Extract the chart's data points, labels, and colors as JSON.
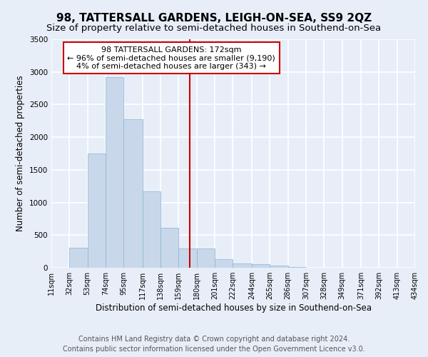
{
  "title": "98, TATTERSALL GARDENS, LEIGH-ON-SEA, SS9 2QZ",
  "subtitle": "Size of property relative to semi-detached houses in Southend-on-Sea",
  "xlabel": "Distribution of semi-detached houses by size in Southend-on-Sea",
  "ylabel": "Number of semi-detached properties",
  "footer_line1": "Contains HM Land Registry data © Crown copyright and database right 2024.",
  "footer_line2": "Contains public sector information licensed under the Open Government Licence v3.0.",
  "bin_edges": [
    11,
    32,
    53,
    74,
    95,
    117,
    138,
    159,
    180,
    201,
    222,
    244,
    265,
    286,
    307,
    328,
    349,
    371,
    392,
    413,
    434
  ],
  "bar_heights": [
    5,
    310,
    1750,
    2920,
    2280,
    1175,
    610,
    290,
    300,
    135,
    70,
    55,
    30,
    10,
    5,
    3,
    2,
    1,
    1,
    0
  ],
  "bar_color": "#c8d8ea",
  "bar_edgecolor": "#8ab4d4",
  "vline_x": 172,
  "vline_color": "#cc0000",
  "ylim": [
    0,
    3500
  ],
  "yticks": [
    0,
    500,
    1000,
    1500,
    2000,
    2500,
    3000,
    3500
  ],
  "annotation_title": "98 TATTERSALL GARDENS: 172sqm",
  "annotation_line1": "← 96% of semi-detached houses are smaller (9,190)",
  "annotation_line2": "4% of semi-detached houses are larger (343) →",
  "annotation_box_color": "#ffffff",
  "annotation_box_edgecolor": "#cc0000",
  "background_color": "#e8eef8",
  "grid_color": "#ffffff",
  "title_fontsize": 11,
  "subtitle_fontsize": 9.5,
  "tick_label_fontsize": 7,
  "ylabel_fontsize": 8.5,
  "xlabel_fontsize": 8.5,
  "annotation_fontsize": 8,
  "footer_fontsize": 7
}
